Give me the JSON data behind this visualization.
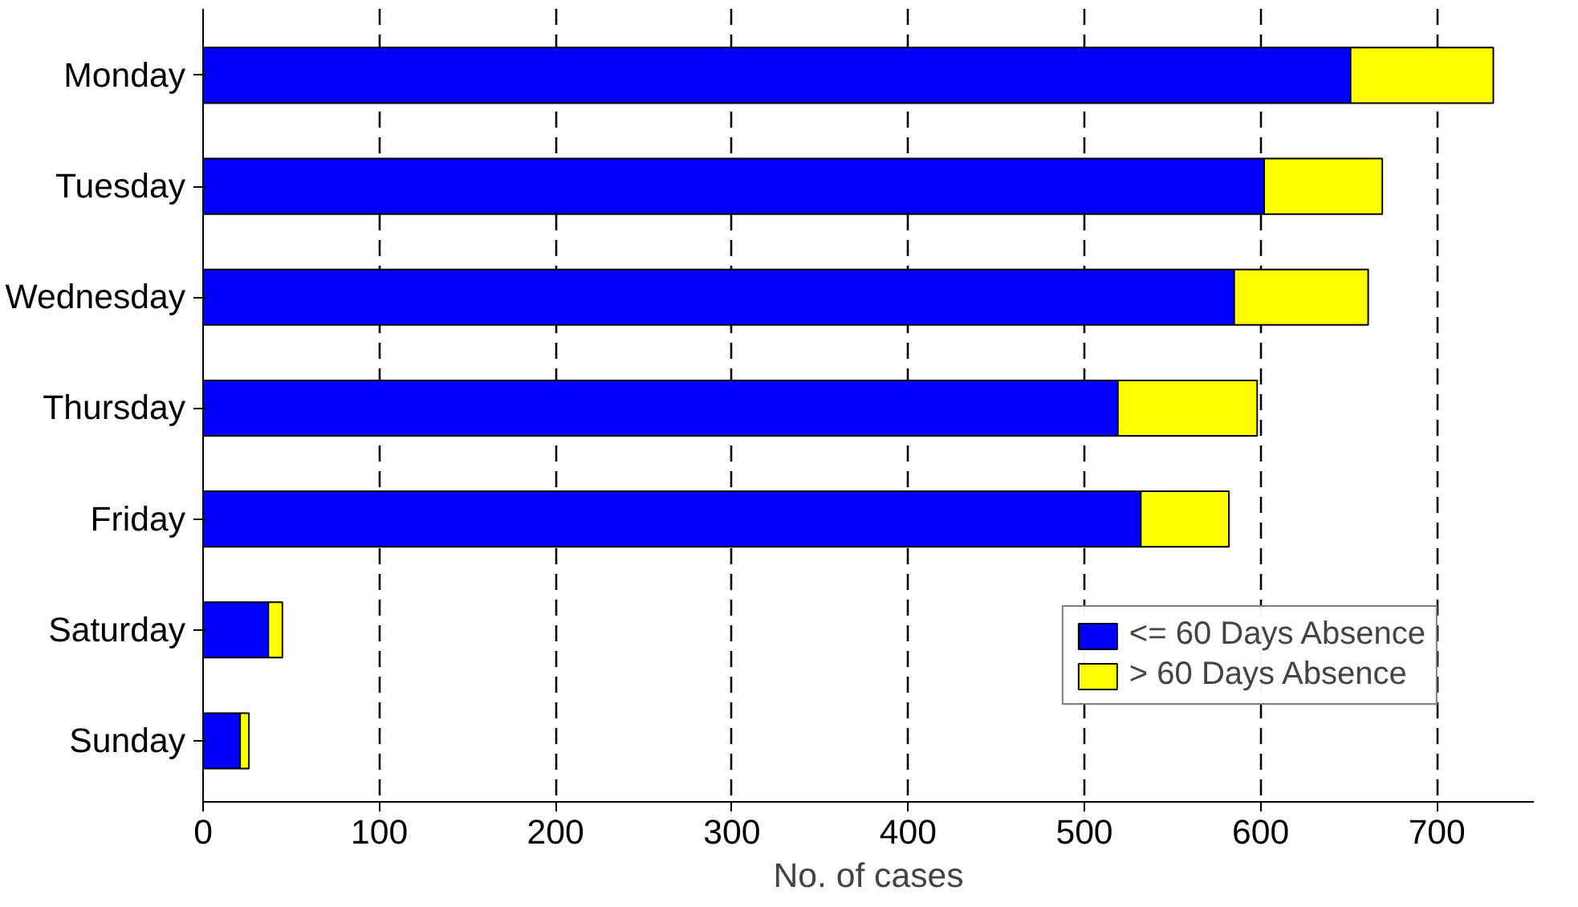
{
  "chart_data": {
    "type": "bar",
    "orientation": "horizontal",
    "stacked": true,
    "xlabel": "No. of cases",
    "categories": [
      "Monday",
      "Tuesday",
      "Wednesday",
      "Thursday",
      "Friday",
      "Saturday",
      "Sunday"
    ],
    "series": [
      {
        "name": "<= 60 Days Absence",
        "color": "#0000ff",
        "values": [
          651,
          602,
          585,
          519,
          532,
          37,
          21
        ]
      },
      {
        "name": "> 60 Days Absence",
        "color": "#ffff00",
        "values": [
          81,
          67,
          76,
          79,
          50,
          8,
          5
        ]
      }
    ],
    "xlim": [
      0,
      755
    ],
    "xticks": [
      0,
      100,
      200,
      300,
      400,
      500,
      600,
      700
    ],
    "grid": "x",
    "legend": "bottom right"
  }
}
